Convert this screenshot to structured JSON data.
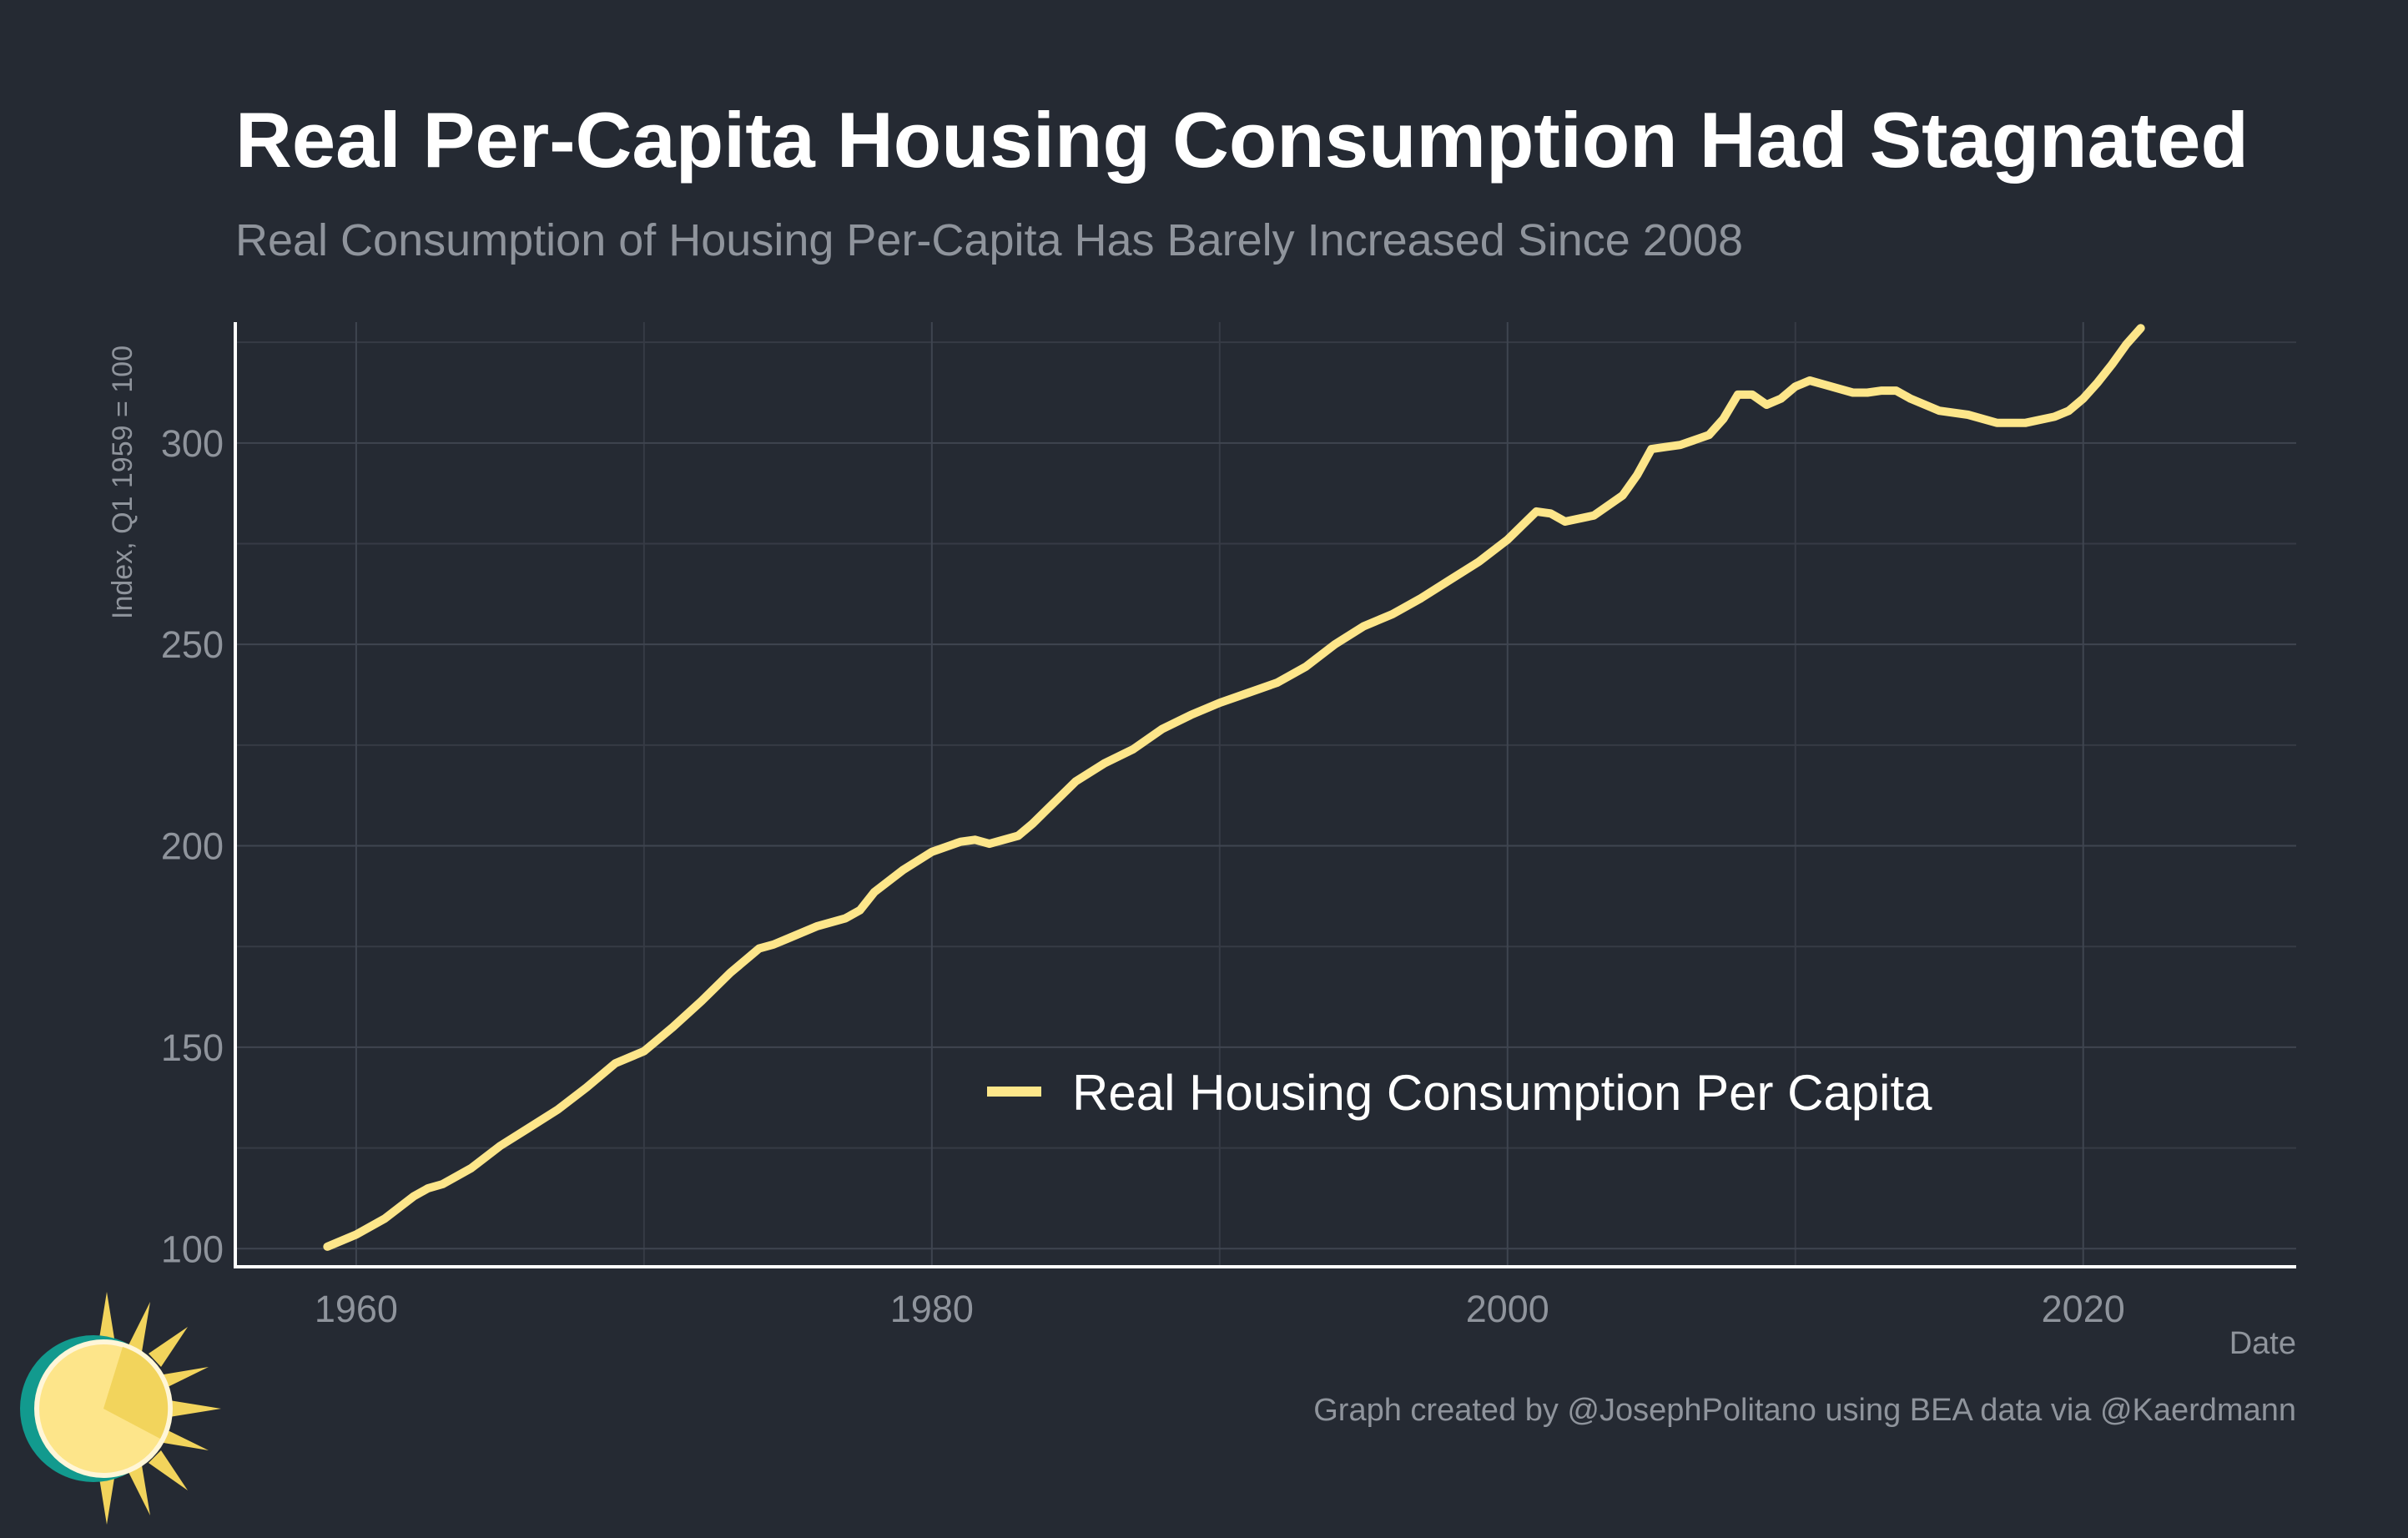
{
  "chart_data": {
    "type": "line",
    "title": "Real Per-Capita Housing Consumption Had Stagnated",
    "subtitle": "Real Consumption of Housing Per-Capita Has Barely Increased Since 2008",
    "xlabel": "Date",
    "ylabel": "Index, Q1 1959 = 100",
    "caption": "Graph created by @JosephPolitano using BEA data via @Kaerdmann",
    "xlim": [
      1955.8,
      2027.4
    ],
    "ylim": [
      95.5,
      330
    ],
    "x_ticks": [
      1960,
      1980,
      2000,
      2020
    ],
    "y_ticks": [
      100,
      150,
      200,
      250,
      300
    ],
    "grid": true,
    "legend_position": "center-bottom",
    "series": [
      {
        "name": "Real Housing Consumption Per Capita",
        "color": "#fde68a",
        "x": [
          1959.0,
          1960.0,
          1961.0,
          1962.0,
          1962.5,
          1963.0,
          1964.0,
          1965.0,
          1966.0,
          1967.0,
          1968.0,
          1969.0,
          1970.0,
          1971.0,
          1972.0,
          1973.0,
          1974.0,
          1974.5,
          1975.0,
          1976.0,
          1977.0,
          1977.5,
          1978.0,
          1979.0,
          1980.0,
          1981.0,
          1981.5,
          1982.0,
          1983.0,
          1983.5,
          1984.0,
          1985.0,
          1986.0,
          1987.0,
          1988.0,
          1989.0,
          1990.0,
          1991.0,
          1992.0,
          1993.0,
          1994.0,
          1995.0,
          1996.0,
          1997.0,
          1998.0,
          1999.0,
          2000.0,
          2001.0,
          2001.5,
          2002.0,
          2003.0,
          2004.0,
          2004.5,
          2005.0,
          2005.5,
          2006.0,
          2007.0,
          2007.5,
          2008.0,
          2008.5,
          2009.0,
          2009.5,
          2010.0,
          2010.5,
          2011.0,
          2012.0,
          2012.5,
          2013.0,
          2013.5,
          2014.0,
          2015.0,
          2016.0,
          2017.0,
          2018.0,
          2019.0,
          2019.5,
          2020.0,
          2020.5,
          2021.0,
          2021.5,
          2022.0
        ],
        "values": [
          100.5,
          103.5,
          107.5,
          113.0,
          115.0,
          116.0,
          120.0,
          125.5,
          130.0,
          134.5,
          140.0,
          146.0,
          149.0,
          155.0,
          161.5,
          168.5,
          174.5,
          175.5,
          177.0,
          180.0,
          182.0,
          184.0,
          188.5,
          194.0,
          198.5,
          201.0,
          201.5,
          200.5,
          202.5,
          205.5,
          209.0,
          216.0,
          220.5,
          224.0,
          229.0,
          232.5,
          235.5,
          238.0,
          240.5,
          244.5,
          250.0,
          254.5,
          257.5,
          261.5,
          266.0,
          270.5,
          276.0,
          283.0,
          282.5,
          280.5,
          282.0,
          287.0,
          292.0,
          298.5,
          299.0,
          299.5,
          302.0,
          306.0,
          312.0,
          312.0,
          309.5,
          311.0,
          314.0,
          315.5,
          314.5,
          312.5,
          312.5,
          313.0,
          313.0,
          311.0,
          308.0,
          307.0,
          305.0,
          305.0,
          306.5,
          308.0,
          311.0,
          315.0,
          319.5,
          324.5,
          328.5
        ]
      }
    ]
  }
}
